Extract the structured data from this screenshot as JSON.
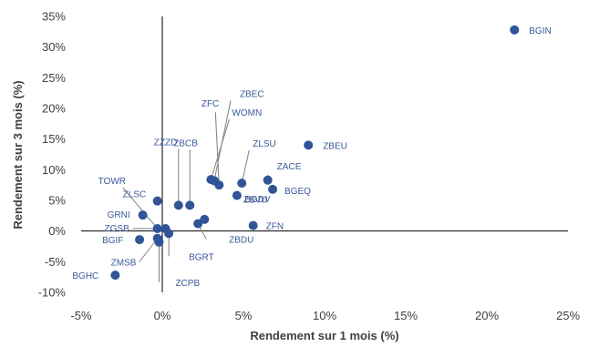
{
  "chart_data": {
    "type": "scatter",
    "title": "",
    "xlabel": "Rendement sur 1 mois (%)",
    "ylabel": "Rendement sur 3 mois (%)",
    "xlim": [
      -5,
      25
    ],
    "ylim": [
      -10,
      35
    ],
    "x_ticks": [
      "-5%",
      "0%",
      "5%",
      "10%",
      "15%",
      "20%",
      "25%"
    ],
    "x_tick_values": [
      -5,
      0,
      5,
      10,
      15,
      20,
      25
    ],
    "y_ticks": [
      "35%",
      "30%",
      "25%",
      "20%",
      "15%",
      "10%",
      "5%",
      "0%",
      "-5%",
      "-10%"
    ],
    "y_tick_values": [
      35,
      30,
      25,
      20,
      15,
      10,
      5,
      0,
      -5,
      -10
    ],
    "grid": false,
    "legend": "none",
    "marker_color": "#2F5597",
    "label_color": "#3A5A98",
    "points": [
      {
        "label": "BGIN",
        "x": 21.7,
        "y": 32.8
      },
      {
        "label": "ZBEU",
        "x": 9.0,
        "y": 14.0
      },
      {
        "label": "ZBEC",
        "x": 3.2,
        "y": 8.2
      },
      {
        "label": "ZFC",
        "x": 3.5,
        "y": 7.5
      },
      {
        "label": "WOMN",
        "x": 3.0,
        "y": 8.4
      },
      {
        "label": "ZLSU",
        "x": 4.9,
        "y": 7.8
      },
      {
        "label": "ZACE",
        "x": 6.5,
        "y": 8.3
      },
      {
        "label": "BGEQ",
        "x": 6.8,
        "y": 6.8
      },
      {
        "label": "ZBVU",
        "x": 4.6,
        "y": 5.8
      },
      {
        "label": "ZZZD",
        "x": 1.0,
        "y": 4.2
      },
      {
        "label": "ZBCB",
        "x": 1.7,
        "y": 4.2
      },
      {
        "label": "TOWR",
        "x": -0.3,
        "y": 0.4
      },
      {
        "label": "ZLSC",
        "x": -0.3,
        "y": 4.9
      },
      {
        "label": "BGDV",
        "x": 2.6,
        "y": 1.9
      },
      {
        "label": "GRNI",
        "x": -1.2,
        "y": 2.6
      },
      {
        "label": "ZFN",
        "x": 5.6,
        "y": 0.9
      },
      {
        "label": "ZGSB",
        "x": 0.2,
        "y": 0.4
      },
      {
        "label": "ZBDU",
        "x": 2.2,
        "y": 1.2
      },
      {
        "label": "BGIF",
        "x": -1.4,
        "y": -1.4
      },
      {
        "label": "BGRT",
        "x": 0.4,
        "y": -0.4
      },
      {
        "label": "ZMSB",
        "x": -0.3,
        "y": -1.2
      },
      {
        "label": "ZCPB",
        "x": -0.2,
        "y": -1.8
      },
      {
        "label": "BGHC",
        "x": -2.9,
        "y": -7.2
      }
    ]
  }
}
